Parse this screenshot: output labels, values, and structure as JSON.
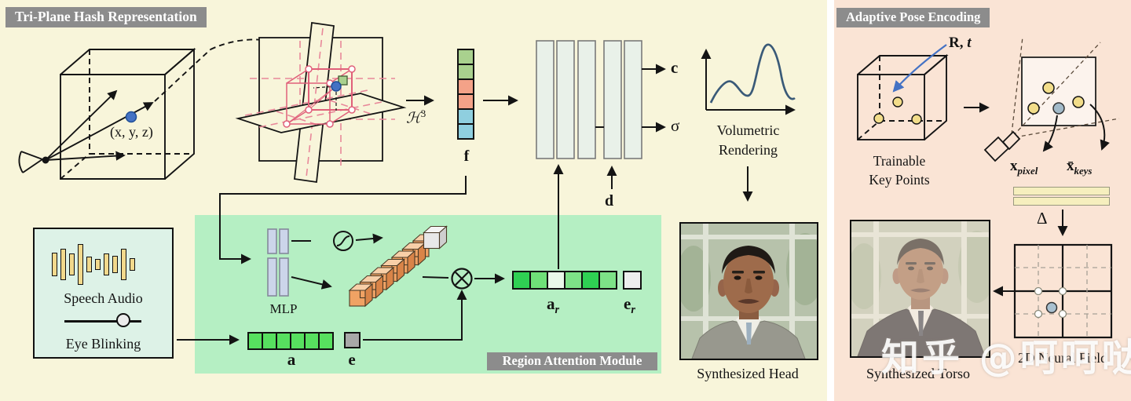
{
  "left_panel": {
    "title": "Tri-Plane Hash Representation",
    "point_label": "(x, y, z)",
    "hash_base": "ℋ",
    "hash_exp": "3",
    "f_label": "f",
    "c_label": "c",
    "sigma_label": "σ",
    "d_label": "d",
    "volumetric_line1": "Volumetric",
    "volumetric_line2": "Rendering",
    "speech_box": {
      "audio_label": "Speech Audio",
      "blink_label": "Eye Blinking",
      "bars": [
        30,
        40,
        28,
        52,
        20,
        14,
        28,
        22,
        40,
        16
      ]
    },
    "region_module": {
      "badge": "Region Attention Module",
      "mlp_label": "MLP",
      "a_label": "a",
      "e_label": "e",
      "ar_base": "a",
      "ar_sub": "r",
      "er_base": "e",
      "er_sub": "r"
    },
    "head_caption": "Synthesized Head"
  },
  "right_panel": {
    "title": "Adaptive Pose Encoding",
    "rt_label_r": "R,",
    "rt_label_t": "t",
    "trainable_line1": "Trainable",
    "trainable_line2": "Key Points",
    "xpixel_base": "x",
    "xpixel_sub": "pixel",
    "xkeys_base": "x̄",
    "xkeys_sub": "keys",
    "delta_label": "Δ",
    "field_caption": "2D Neural Field",
    "torso_caption": "Synthesized Torso"
  },
  "watermark": "知乎 @呵呵哒",
  "icons": {
    "multiply": "⊗",
    "sigmoid": "sigmoid-curve"
  },
  "colors": {
    "left_bg": "#f8f5da",
    "right_bg": "#fae4d5",
    "module_bg": "#b5efc3",
    "speech_bg": "#ddf2e7",
    "badge_bg": "#8c8c8c",
    "audio_bar": "#f2d98c",
    "e_cell": "#a8a8a8",
    "er_cell": "#ededed",
    "curve": "#3a5a78",
    "pose_arrow": "#4472c4",
    "f_cells": [
      "#a9d18e",
      "#a9d18e",
      "#f4a288",
      "#f4a288",
      "#8fcfdf",
      "#8fcfdf"
    ],
    "a_cells": [
      "#57e05f",
      "#57e05f",
      "#57e05f",
      "#57e05f",
      "#57e05f",
      "#57e05f"
    ],
    "ar_cells": [
      "#2fd053",
      "#6fe078",
      "#e9f9e9",
      "#7de287",
      "#2fd053",
      "#7de287"
    ],
    "pose_feature_bar": "#f6efbe"
  }
}
